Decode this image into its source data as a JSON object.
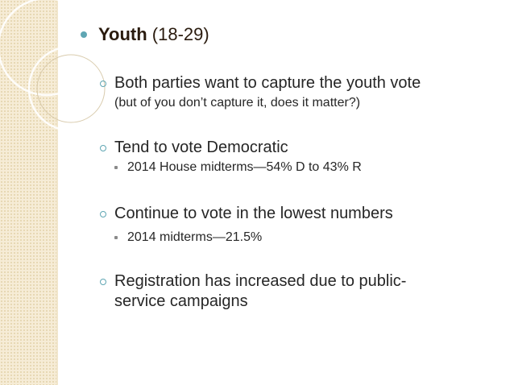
{
  "slide": {
    "title_bold": "Youth",
    "title_rest": " (18-29)",
    "points": [
      {
        "text": "Both parties want to capture the youth vote",
        "note": "(but of you don’t capture it, does it matter?)"
      },
      {
        "text": "Tend to vote Democratic",
        "sub": "2014 House midterms—54% D to 43% R"
      },
      {
        "text": "Continue to vote in the lowest numbers",
        "sub": "2014 midterms—21.5%"
      },
      {
        "text": "Registration has increased due to public-service campaigns"
      }
    ]
  },
  "theme": {
    "accent": "#5fa6b3",
    "band": "#f6ecd6",
    "title_color": "#2a1b0e"
  }
}
